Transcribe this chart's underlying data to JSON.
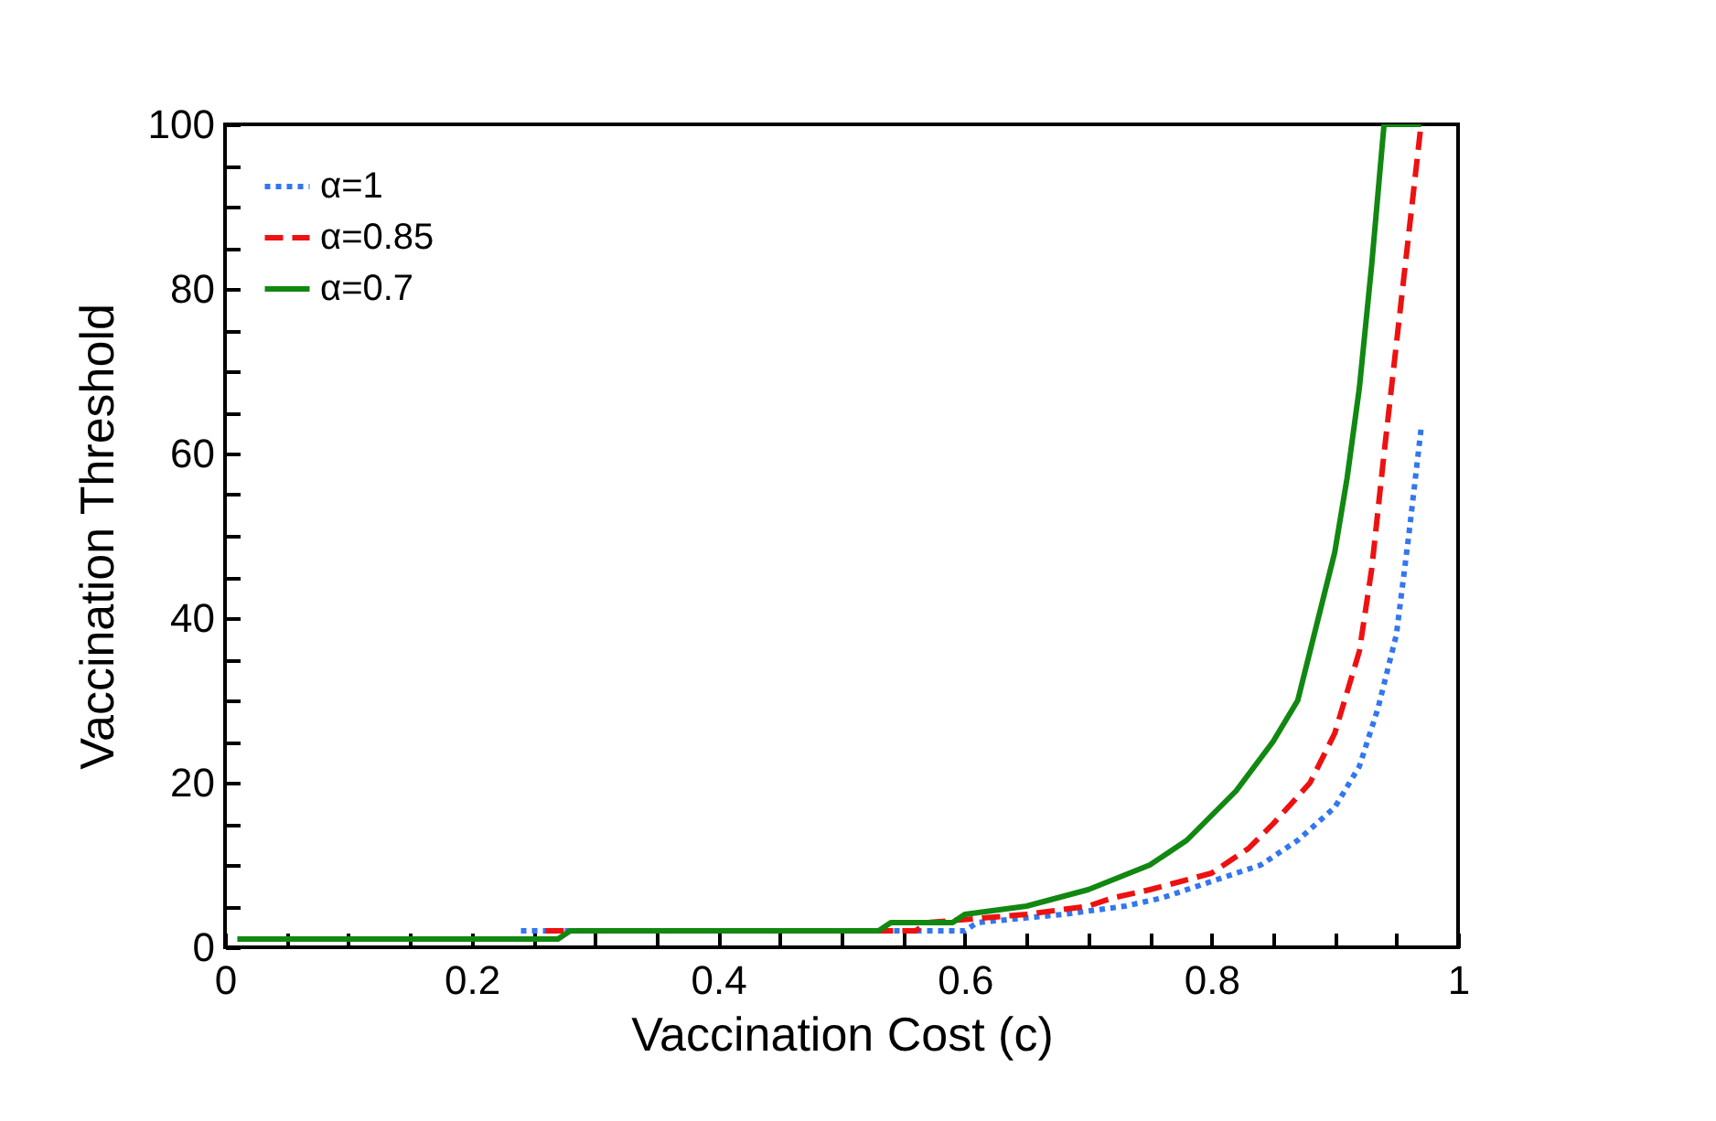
{
  "chart_data": {
    "type": "line",
    "xlabel": "Vaccination Cost (c)",
    "ylabel": "Vaccination Threshold",
    "xlim": [
      0,
      1
    ],
    "ylim": [
      0,
      100
    ],
    "xticks": [
      0,
      {
        "value": 0.05,
        "label": null
      },
      {
        "value": 0.1,
        "label": null
      },
      {
        "value": 0.15,
        "label": null
      },
      0.2,
      {
        "value": 0.25,
        "label": null
      },
      {
        "value": 0.3,
        "label": null
      },
      {
        "value": 0.35,
        "label": null
      },
      0.4,
      {
        "value": 0.45,
        "label": null
      },
      {
        "value": 0.5,
        "label": null
      },
      {
        "value": 0.55,
        "label": null
      },
      0.6,
      {
        "value": 0.65,
        "label": null
      },
      {
        "value": 0.7,
        "label": null
      },
      {
        "value": 0.75,
        "label": null
      },
      0.8,
      {
        "value": 0.85,
        "label": null
      },
      {
        "value": 0.9,
        "label": null
      },
      {
        "value": 0.95,
        "label": null
      },
      1
    ],
    "yticks": [
      0,
      {
        "value": 5,
        "label": null
      },
      {
        "value": 10,
        "label": null
      },
      {
        "value": 15,
        "label": null
      },
      20,
      {
        "value": 25,
        "label": null
      },
      {
        "value": 30,
        "label": null
      },
      {
        "value": 35,
        "label": null
      },
      40,
      {
        "value": 45,
        "label": null
      },
      {
        "value": 50,
        "label": null
      },
      {
        "value": 55,
        "label": null
      },
      60,
      {
        "value": 65,
        "label": null
      },
      {
        "value": 70,
        "label": null
      },
      {
        "value": 75,
        "label": null
      },
      80,
      {
        "value": 85,
        "label": null
      },
      {
        "value": 90,
        "label": null
      },
      {
        "value": 95,
        "label": null
      },
      100
    ],
    "grid": false,
    "legend": "top left",
    "series": [
      {
        "name": "α=1",
        "color": "#3377ee",
        "line_style": "dotted",
        "x": [
          0.24,
          0.6,
          0.61,
          0.68,
          0.73,
          0.76,
          0.8,
          0.84,
          0.87,
          0.9,
          0.92,
          0.935,
          0.95,
          0.96,
          0.97
        ],
        "values": [
          2,
          2,
          3,
          4,
          5,
          6,
          8,
          10,
          13,
          17,
          22,
          29,
          38,
          50,
          63
        ]
      },
      {
        "name": "α=0.85",
        "color": "#ee1111",
        "line_style": "dashed",
        "x": [
          0.26,
          0.56,
          0.57,
          0.65,
          0.7,
          0.72,
          0.75,
          0.8,
          0.83,
          0.85,
          0.88,
          0.9,
          0.92,
          0.93,
          0.94,
          0.955,
          0.97
        ],
        "values": [
          2,
          2,
          3,
          4,
          5,
          6,
          7,
          9,
          12,
          15,
          20,
          26,
          36,
          46,
          60,
          80,
          100
        ]
      },
      {
        "name": "α=0.7",
        "color": "#118811",
        "line_style": "solid",
        "x": [
          0.01,
          0.27,
          0.28,
          0.53,
          0.54,
          0.59,
          0.6,
          0.65,
          0.7,
          0.75,
          0.78,
          0.8,
          0.82,
          0.85,
          0.87,
          0.88,
          0.9,
          0.91,
          0.92,
          0.93,
          0.94,
          0.97
        ],
        "values": [
          1,
          1,
          2,
          2,
          3,
          3,
          4,
          5,
          7,
          10,
          13,
          16,
          19,
          25,
          30,
          36,
          48,
          57,
          68,
          83,
          100,
          100
        ]
      }
    ]
  }
}
